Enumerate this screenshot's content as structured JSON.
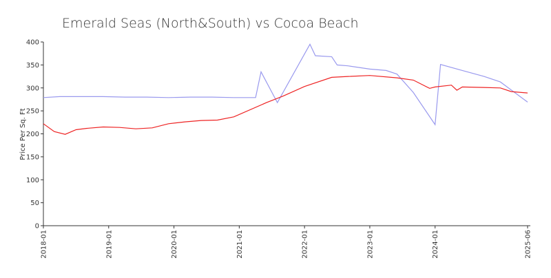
{
  "chart_data": {
    "type": "line",
    "title": "Emerald Seas (North&South) vs Cocoa Beach",
    "y_label": "Price Per Sq. Ft",
    "xlim": [
      "2018-01",
      "2025-06"
    ],
    "xticks": [
      "2018-01",
      "2019-01",
      "2020-01",
      "2021-01",
      "2022-01",
      "2023-01",
      "2024-01",
      "2025-06"
    ],
    "ylim": [
      0,
      400
    ],
    "yticks": [
      0,
      50,
      100,
      150,
      200,
      250,
      300,
      350,
      400
    ],
    "series": [
      {
        "color": "#9999ee",
        "x": [
          "2018-01",
          "2018-04",
          "2018-08",
          "2018-12",
          "2019-04",
          "2019-08",
          "2019-12",
          "2020-04",
          "2020-08",
          "2020-12",
          "2021-04",
          "2021-05",
          "2021-08",
          "2022-02",
          "2022-03",
          "2022-06",
          "2022-07",
          "2022-09",
          "2023-01",
          "2023-04",
          "2023-06",
          "2023-09",
          "2024-01",
          "2024-02",
          "2024-06",
          "2024-10",
          "2025-01",
          "2025-06"
        ],
        "values": [
          279,
          281,
          281,
          281,
          280,
          280,
          279,
          280,
          280,
          279,
          279,
          335,
          268,
          395,
          370,
          368,
          350,
          348,
          341,
          338,
          330,
          290,
          220,
          351,
          338,
          325,
          313,
          269
        ]
      },
      {
        "color": "#ee2222",
        "x": [
          "2018-01",
          "2018-03",
          "2018-05",
          "2018-07",
          "2018-09",
          "2018-12",
          "2019-03",
          "2019-06",
          "2019-09",
          "2019-12",
          "2020-03",
          "2020-06",
          "2020-09",
          "2020-12",
          "2021-06",
          "2021-09",
          "2022-01",
          "2022-06",
          "2022-09",
          "2023-01",
          "2023-06",
          "2023-09",
          "2023-12",
          "2024-01",
          "2024-04",
          "2024-05",
          "2024-06",
          "2024-10",
          "2025-01",
          "2025-03",
          "2025-06"
        ],
        "values": [
          222,
          205,
          199,
          209,
          212,
          215,
          214,
          211,
          213,
          222,
          226,
          229,
          230,
          237,
          268,
          282,
          303,
          323,
          325,
          327,
          322,
          317,
          299,
          302,
          306,
          295,
          302,
          301,
          300,
          292,
          289
        ]
      }
    ]
  }
}
